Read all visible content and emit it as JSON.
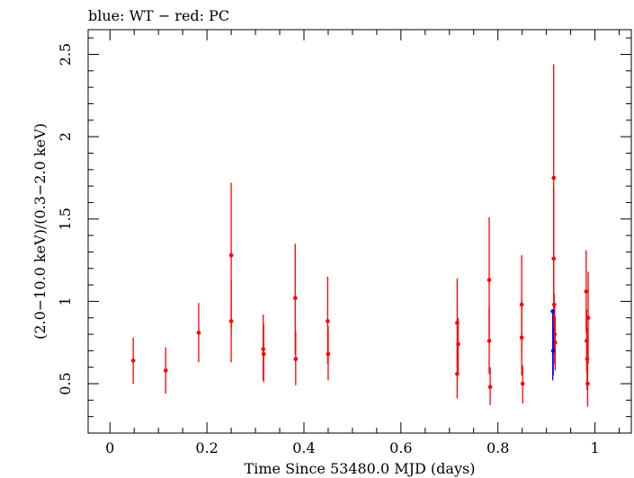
{
  "chart_data": {
    "type": "scatter",
    "title": "blue: WT − red: PC",
    "xlabel": "Time Since 53480.0 MJD (days)",
    "ylabel": "(2.0−10.0 keV)/(0.3−2.0 keV)",
    "xlim": [
      -0.045,
      1.075
    ],
    "ylim": [
      0.2,
      2.65
    ],
    "xticks": [
      0,
      0.2,
      0.4,
      0.6,
      0.8,
      1
    ],
    "xtick_labels": [
      "0",
      "0.2",
      "0.4",
      "0.6",
      "0.8",
      "1"
    ],
    "yticks": [
      0.5,
      1,
      1.5,
      2,
      2.5
    ],
    "ytick_labels": [
      "0.5",
      "1",
      "1.5",
      "2",
      "2.5"
    ],
    "grid": false,
    "legend": "none",
    "series": [
      {
        "color": "#ff0000",
        "points": [
          {
            "x": 0.048,
            "y": 0.64,
            "lo": 0.5,
            "hi": 0.78
          },
          {
            "x": 0.115,
            "y": 0.58,
            "lo": 0.44,
            "hi": 0.72
          },
          {
            "x": 0.183,
            "y": 0.81,
            "lo": 0.63,
            "hi": 0.99
          },
          {
            "x": 0.25,
            "y": 1.28,
            "lo": 0.83,
            "hi": 1.72
          },
          {
            "x": 0.25,
            "y": 0.88,
            "lo": 0.63,
            "hi": 1.13
          },
          {
            "x": 0.316,
            "y": 0.71,
            "lo": 0.52,
            "hi": 0.92
          },
          {
            "x": 0.317,
            "y": 0.68,
            "lo": 0.51,
            "hi": 0.86
          },
          {
            "x": 0.382,
            "y": 1.02,
            "lo": 0.68,
            "hi": 1.35
          },
          {
            "x": 0.383,
            "y": 0.65,
            "lo": 0.49,
            "hi": 0.82
          },
          {
            "x": 0.449,
            "y": 0.88,
            "lo": 0.62,
            "hi": 1.15
          },
          {
            "x": 0.45,
            "y": 0.68,
            "lo": 0.52,
            "hi": 0.85
          },
          {
            "x": 0.716,
            "y": 0.87,
            "lo": 0.6,
            "hi": 1.14
          },
          {
            "x": 0.716,
            "y": 0.56,
            "lo": 0.41,
            "hi": 0.72
          },
          {
            "x": 0.718,
            "y": 0.74,
            "lo": 0.57,
            "hi": 0.9
          },
          {
            "x": 0.782,
            "y": 1.13,
            "lo": 0.76,
            "hi": 1.51
          },
          {
            "x": 0.782,
            "y": 0.76,
            "lo": 0.56,
            "hi": 0.96
          },
          {
            "x": 0.784,
            "y": 0.48,
            "lo": 0.37,
            "hi": 0.6
          },
          {
            "x": 0.849,
            "y": 0.98,
            "lo": 0.68,
            "hi": 1.28
          },
          {
            "x": 0.849,
            "y": 0.78,
            "lo": 0.55,
            "hi": 1.01
          },
          {
            "x": 0.851,
            "y": 0.5,
            "lo": 0.38,
            "hi": 0.61
          },
          {
            "x": 0.915,
            "y": 1.75,
            "lo": 1.06,
            "hi": 2.44
          },
          {
            "x": 0.915,
            "y": 1.26,
            "lo": 0.82,
            "hi": 1.7
          },
          {
            "x": 0.916,
            "y": 0.98,
            "lo": 0.7,
            "hi": 1.05
          },
          {
            "x": 0.917,
            "y": 0.8,
            "lo": 0.62,
            "hi": 0.98
          },
          {
            "x": 0.918,
            "y": 0.75,
            "lo": 0.58,
            "hi": 0.91
          },
          {
            "x": 0.982,
            "y": 1.06,
            "lo": 0.81,
            "hi": 1.31
          },
          {
            "x": 0.983,
            "y": 0.76,
            "lo": 0.57,
            "hi": 0.95
          },
          {
            "x": 0.984,
            "y": 0.65,
            "lo": 0.46,
            "hi": 0.84
          },
          {
            "x": 0.985,
            "y": 0.5,
            "lo": 0.36,
            "hi": 0.64
          },
          {
            "x": 0.986,
            "y": 0.9,
            "lo": 0.62,
            "hi": 1.18
          }
        ]
      },
      {
        "color": "#0000ff",
        "points": [
          {
            "x": 0.913,
            "y": 0.94,
            "lo": 0.52,
            "hi": 0.94
          },
          {
            "x": 0.914,
            "y": 0.7,
            "lo": 0.55,
            "hi": 0.85
          }
        ]
      }
    ]
  }
}
